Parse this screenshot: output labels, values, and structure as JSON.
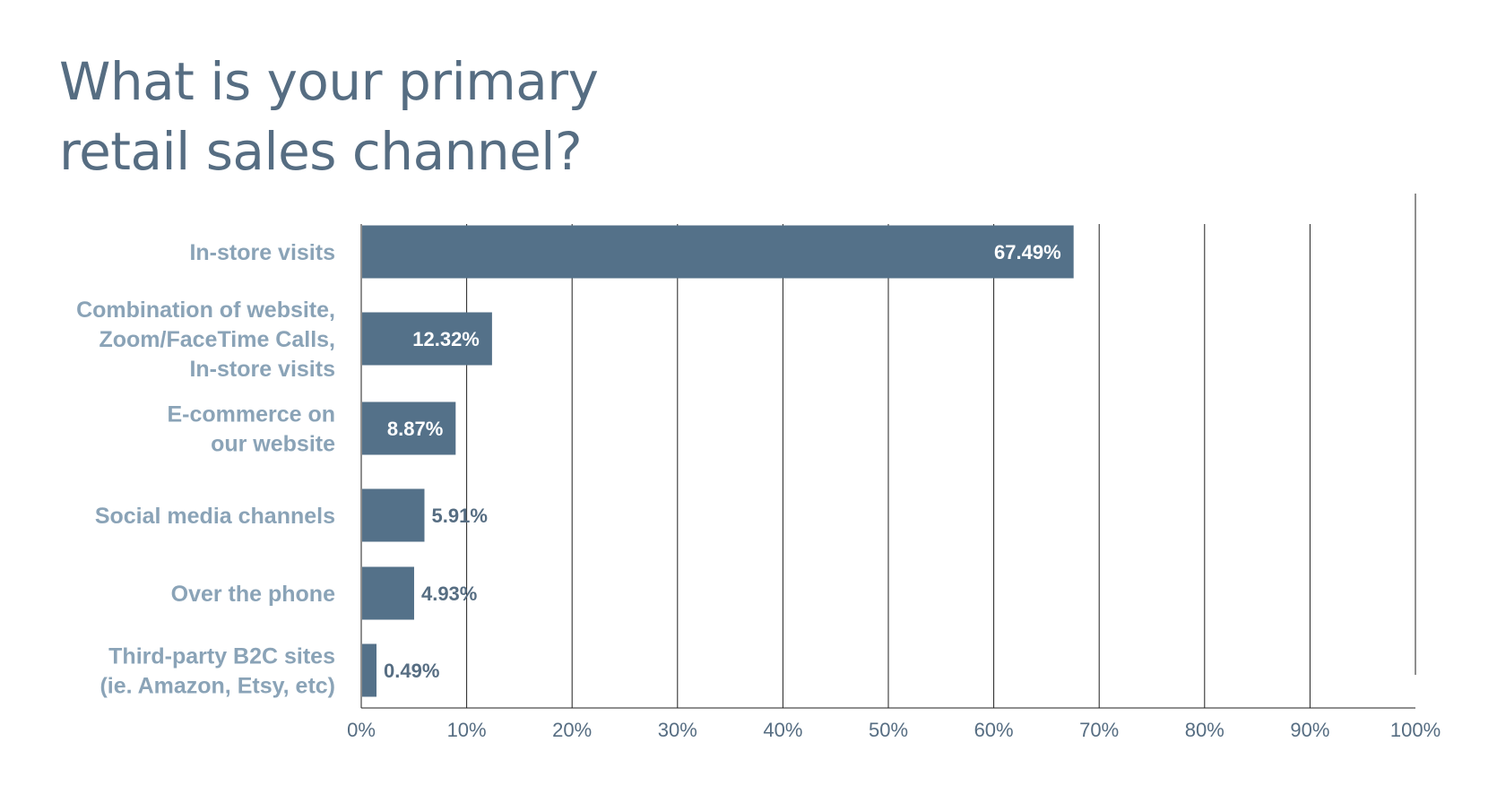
{
  "title_lines": [
    "What is your primary",
    "retail sales channel?"
  ],
  "colors": {
    "bar": "#547189",
    "category_label": "#8aa3b7",
    "value_label_inside": "#ffffff",
    "value_label_outside": "#566d82",
    "title": "#566d82",
    "grid": "#1f1f1f"
  },
  "chart_data": {
    "type": "bar",
    "orientation": "horizontal",
    "title": "What is your primary retail sales channel?",
    "xlabel": "",
    "ylabel": "",
    "xlim": [
      0,
      100
    ],
    "grid": true,
    "categories": [
      [
        "In-store visits"
      ],
      [
        "Combination of website,",
        "Zoom/FaceTime Calls,",
        "In-store visits"
      ],
      [
        "E-commerce on",
        "our website"
      ],
      [
        "Social media channels"
      ],
      [
        "Over the phone"
      ],
      [
        "Third-party B2C sites",
        "(ie. Amazon, Etsy, etc)"
      ]
    ],
    "values": [
      67.49,
      12.32,
      8.87,
      5.91,
      4.93,
      0.49
    ],
    "value_labels": [
      "67.49%",
      "12.32%",
      "8.87%",
      "5.91%",
      "4.93%",
      "0.49%"
    ],
    "value_label_position": [
      "inside",
      "inside",
      "inside",
      "outside",
      "outside",
      "outside"
    ],
    "ticks": [
      0,
      10,
      20,
      30,
      40,
      50,
      60,
      70,
      80,
      90,
      100
    ],
    "tick_labels": [
      "0%",
      "10%",
      "20%",
      "30%",
      "40%",
      "50%",
      "60%",
      "70%",
      "80%",
      "90%",
      "100%"
    ]
  }
}
